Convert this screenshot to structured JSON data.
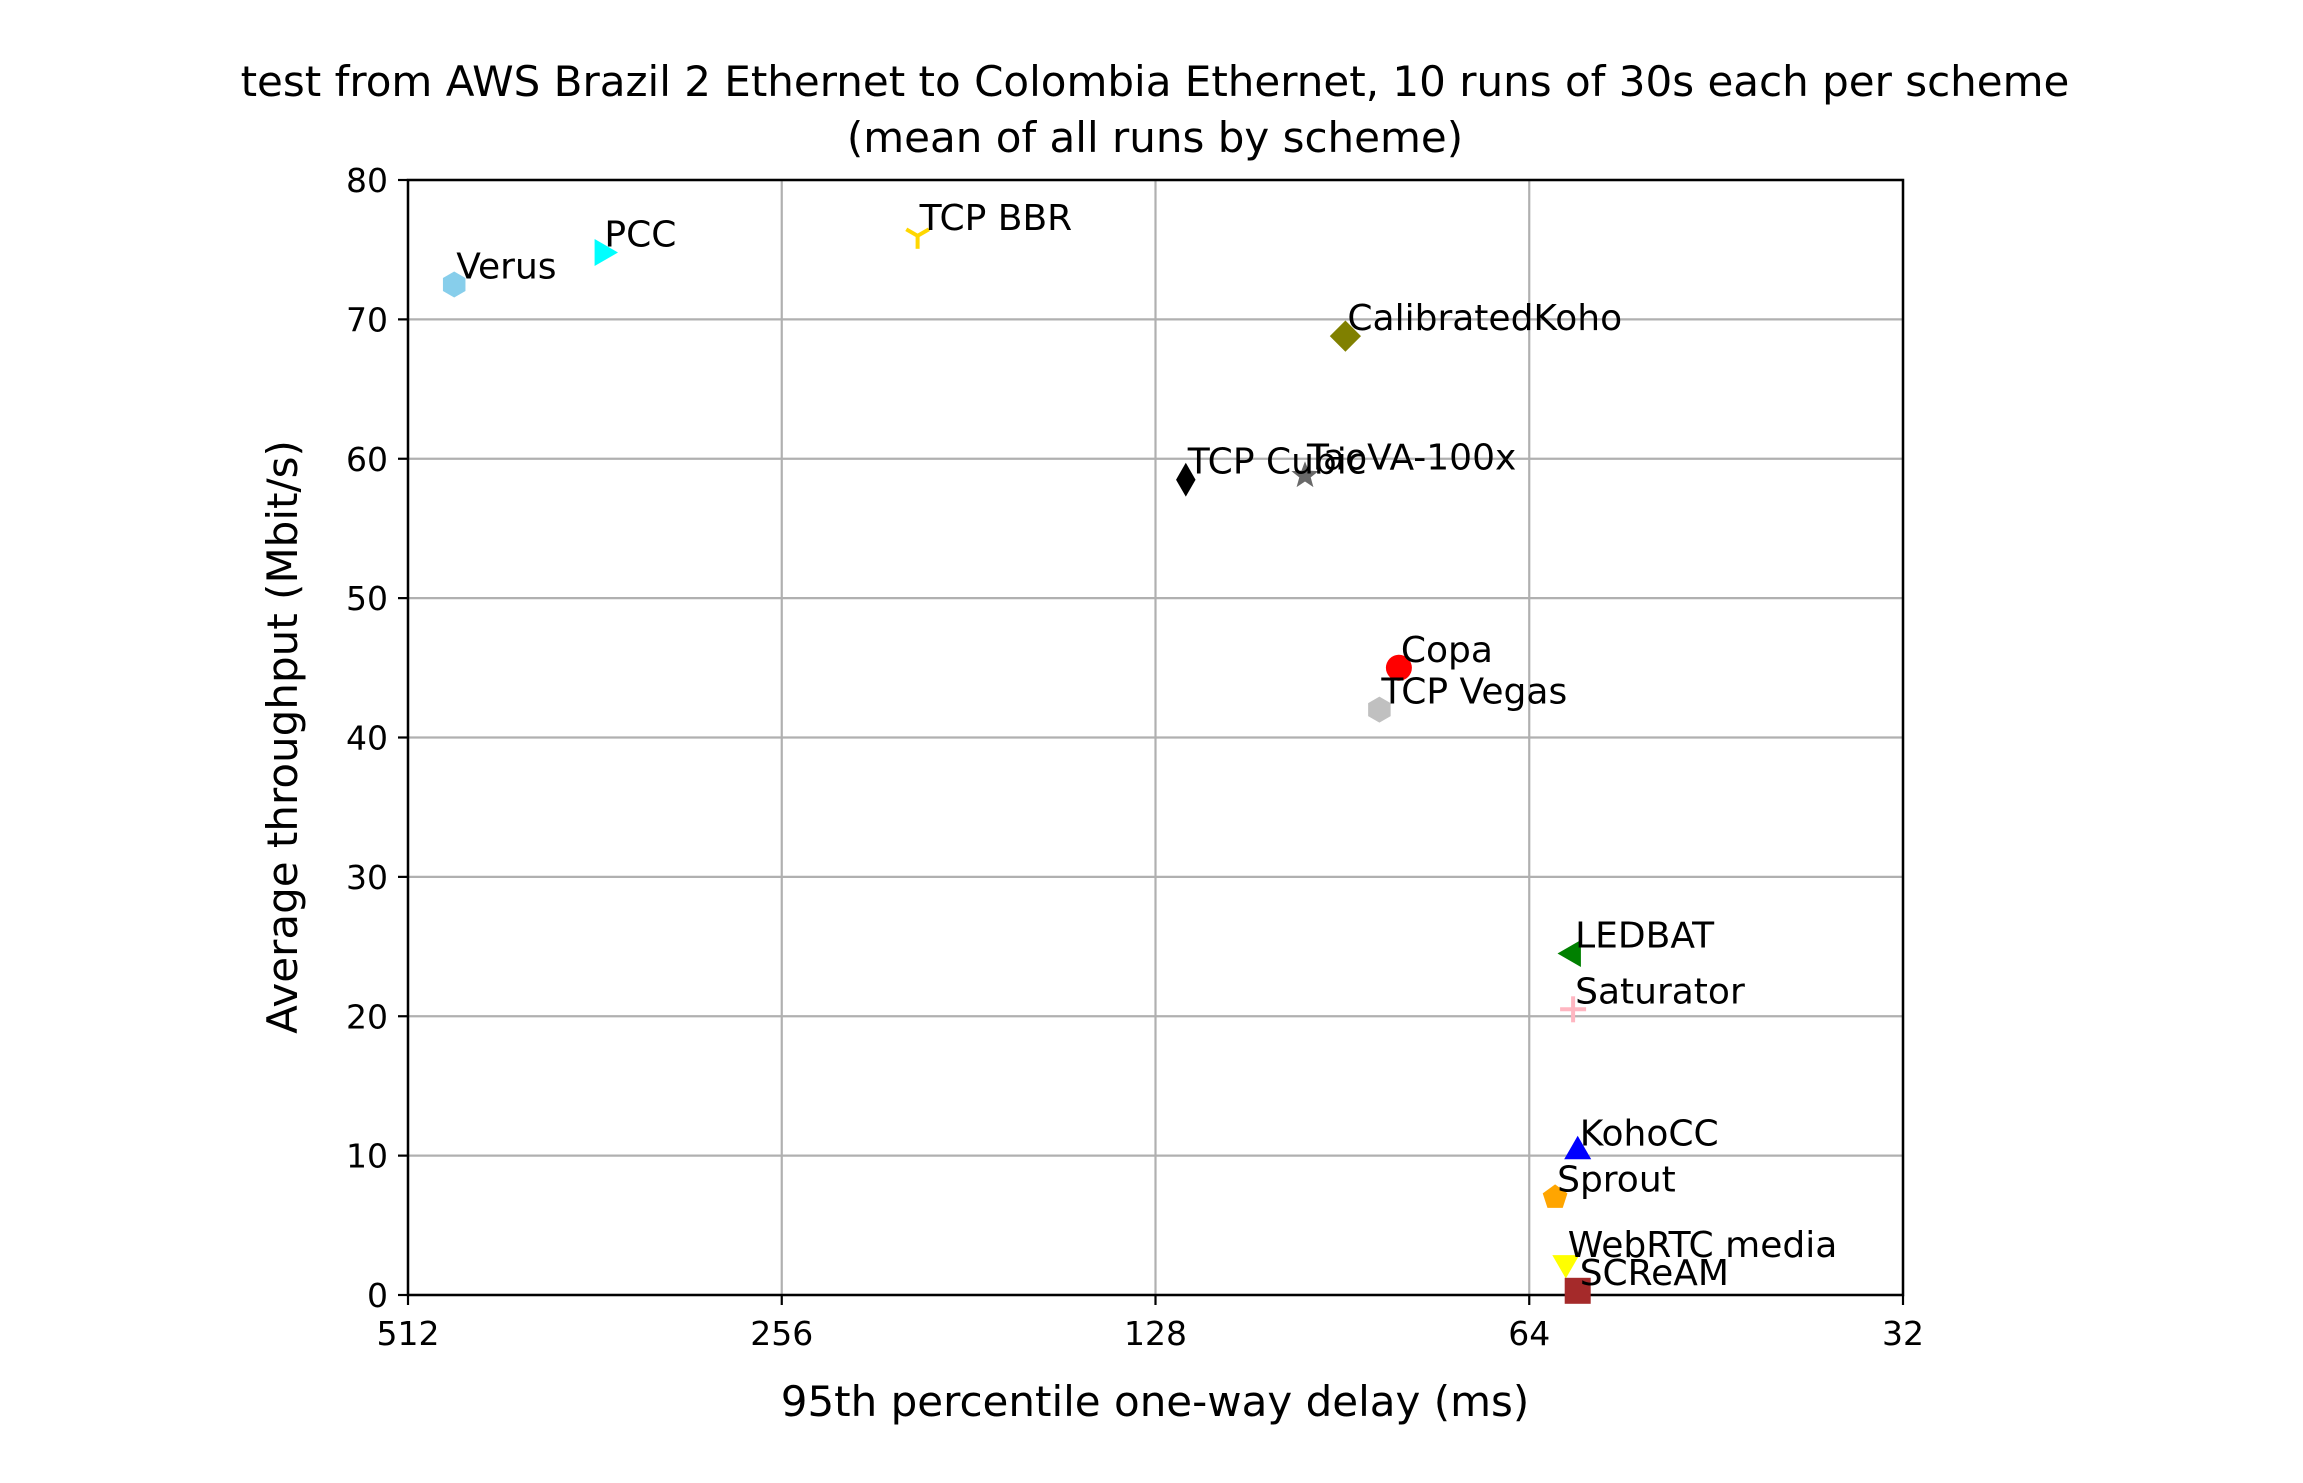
{
  "chart_data": {
    "type": "scatter",
    "title": "test from AWS Brazil 2 Ethernet to Colombia Ethernet, 10 runs of 30s each per scheme",
    "subtitle": "(mean of all runs by scheme)",
    "xlabel": "95th percentile one-way delay (ms)",
    "ylabel": "Average throughput (Mbit/s)",
    "x_scale": "log2",
    "x_inverted": true,
    "xlim": [
      512,
      32
    ],
    "ylim": [
      0,
      80
    ],
    "x_ticks": [
      512,
      256,
      128,
      64,
      32
    ],
    "x_tick_labels": [
      "512",
      "256",
      "128",
      "64",
      "32"
    ],
    "y_ticks": [
      0,
      10,
      20,
      30,
      40,
      50,
      60,
      70,
      80
    ],
    "y_tick_labels": [
      "0",
      "10",
      "20",
      "30",
      "40",
      "50",
      "60",
      "70",
      "80"
    ],
    "grid": true,
    "points": [
      {
        "name": "Verus",
        "x": 470,
        "y": 72.5,
        "marker": "hexagon",
        "color": "#87ceeb"
      },
      {
        "name": "PCC",
        "x": 357,
        "y": 74.8,
        "marker": "triangle-right",
        "color": "#00ffff"
      },
      {
        "name": "TCP BBR",
        "x": 199,
        "y": 76.0,
        "marker": "tri-down",
        "color": "#ffd700"
      },
      {
        "name": "CalibratedKoho",
        "x": 90,
        "y": 68.8,
        "marker": "diamond",
        "color": "#808000"
      },
      {
        "name": "TCP Cubic",
        "x": 121,
        "y": 58.5,
        "marker": "thin-diamond",
        "color": "#000000"
      },
      {
        "name": "TaoVA-100x",
        "x": 97,
        "y": 58.8,
        "marker": "star",
        "color": "#696969"
      },
      {
        "name": "Copa",
        "x": 81.5,
        "y": 45.0,
        "marker": "circle",
        "color": "#ff0000"
      },
      {
        "name": "TCP Vegas",
        "x": 84.5,
        "y": 42.0,
        "marker": "hexagon",
        "color": "#c0c0c0"
      },
      {
        "name": "LEDBAT",
        "x": 59,
        "y": 24.5,
        "marker": "triangle-left",
        "color": "#008000"
      },
      {
        "name": "Saturator",
        "x": 59,
        "y": 20.5,
        "marker": "plus",
        "color": "#ffb6c1"
      },
      {
        "name": "KohoCC",
        "x": 58.5,
        "y": 10.3,
        "marker": "triangle-up",
        "color": "#0000ff"
      },
      {
        "name": "Sprout",
        "x": 61,
        "y": 7.0,
        "marker": "pentagon",
        "color": "#ffa500"
      },
      {
        "name": "WebRTC media",
        "x": 59.8,
        "y": 2.3,
        "marker": "triangle-down",
        "color": "#ffff00"
      },
      {
        "name": "SCReAM",
        "x": 58.5,
        "y": 0.3,
        "marker": "square",
        "color": "#a52a2a"
      }
    ]
  }
}
